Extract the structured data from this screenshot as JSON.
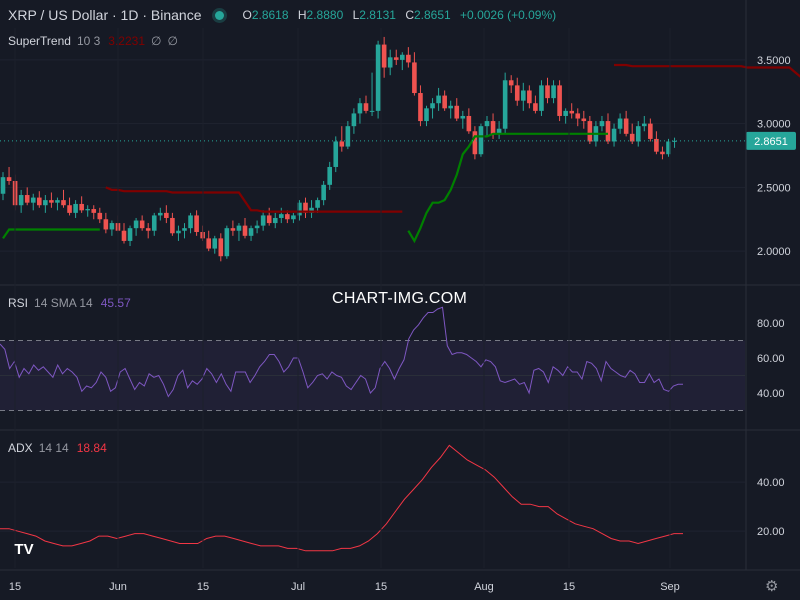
{
  "header": {
    "symbol": "XRP / US Dollar · 1D · Binance",
    "o_label": "O",
    "o": "2.8618",
    "h_label": "H",
    "h": "2.8880",
    "l_label": "L",
    "l": "2.8131",
    "c_label": "C",
    "c": "2.8651",
    "change": "+0.0026 (+0.09%)"
  },
  "supertrend": {
    "name": "SuperTrend",
    "params": "10 3",
    "value": "3.2231",
    "icons": [
      "empty-set-icon",
      "empty-set-icon"
    ]
  },
  "rsi": {
    "name": "RSI",
    "params": "14 SMA 14",
    "value": "45.57"
  },
  "adx": {
    "name": "ADX",
    "params": "14 14",
    "value": "18.84"
  },
  "watermark": "CHART-IMG.COM",
  "logo": "TV",
  "colors": {
    "bg": "#161a25",
    "up": "#26a69a",
    "down": "#ef5350",
    "st_up": "#008000",
    "st_down": "#800000",
    "rsi": "#7e57c2",
    "adx": "#f23645",
    "text": "#d1d4dc"
  },
  "chart_data": [
    {
      "type": "candlestick",
      "title": "XRP / US Dollar · 1D · Binance",
      "ylim": [
        1.75,
        3.75
      ],
      "yticks": [
        "3.5000",
        "3.0000",
        "2.5000",
        "2.0000"
      ],
      "last_price_label": "2.8651",
      "xticks": [
        "15",
        "Jun",
        "15",
        "Jul",
        "15",
        "Aug",
        "15",
        "Sep"
      ],
      "ohlc": [
        [
          2.45,
          2.62,
          2.4,
          2.58
        ],
        [
          2.58,
          2.66,
          2.52,
          2.55
        ],
        [
          2.55,
          2.6,
          2.32,
          2.36
        ],
        [
          2.36,
          2.48,
          2.3,
          2.44
        ],
        [
          2.44,
          2.5,
          2.36,
          2.38
        ],
        [
          2.38,
          2.45,
          2.32,
          2.42
        ],
        [
          2.42,
          2.47,
          2.34,
          2.36
        ],
        [
          2.36,
          2.44,
          2.3,
          2.4
        ],
        [
          2.4,
          2.46,
          2.34,
          2.38
        ],
        [
          2.38,
          2.42,
          2.32,
          2.4
        ],
        [
          2.4,
          2.48,
          2.34,
          2.36
        ],
        [
          2.36,
          2.42,
          2.28,
          2.3
        ],
        [
          2.3,
          2.4,
          2.26,
          2.37
        ],
        [
          2.37,
          2.43,
          2.3,
          2.32
        ],
        [
          2.32,
          2.36,
          2.27,
          2.33
        ],
        [
          2.33,
          2.36,
          2.25,
          2.3
        ],
        [
          2.3,
          2.34,
          2.22,
          2.25
        ],
        [
          2.25,
          2.3,
          2.14,
          2.17
        ],
        [
          2.17,
          2.24,
          2.12,
          2.22
        ],
        [
          2.22,
          2.28,
          2.14,
          2.16
        ],
        [
          2.16,
          2.22,
          2.06,
          2.08
        ],
        [
          2.08,
          2.2,
          2.04,
          2.18
        ],
        [
          2.18,
          2.26,
          2.12,
          2.24
        ],
        [
          2.24,
          2.28,
          2.16,
          2.18
        ],
        [
          2.18,
          2.22,
          2.1,
          2.16
        ],
        [
          2.16,
          2.3,
          2.12,
          2.28
        ],
        [
          2.28,
          2.34,
          2.24,
          2.3
        ],
        [
          2.3,
          2.36,
          2.22,
          2.26
        ],
        [
          2.26,
          2.3,
          2.12,
          2.14
        ],
        [
          2.14,
          2.2,
          2.08,
          2.16
        ],
        [
          2.16,
          2.22,
          2.1,
          2.18
        ],
        [
          2.18,
          2.3,
          2.14,
          2.28
        ],
        [
          2.28,
          2.32,
          2.12,
          2.15
        ],
        [
          2.15,
          2.2,
          2.08,
          2.1
        ],
        [
          2.1,
          2.16,
          2.0,
          2.02
        ],
        [
          2.02,
          2.12,
          1.98,
          2.1
        ],
        [
          2.1,
          2.14,
          1.92,
          1.96
        ],
        [
          1.96,
          2.2,
          1.94,
          2.18
        ],
        [
          2.18,
          2.24,
          2.12,
          2.16
        ],
        [
          2.16,
          2.22,
          2.08,
          2.2
        ],
        [
          2.2,
          2.26,
          2.1,
          2.12
        ],
        [
          2.12,
          2.2,
          2.08,
          2.18
        ],
        [
          2.18,
          2.24,
          2.14,
          2.2
        ],
        [
          2.2,
          2.32,
          2.16,
          2.28
        ],
        [
          2.28,
          2.34,
          2.2,
          2.22
        ],
        [
          2.22,
          2.3,
          2.18,
          2.26
        ],
        [
          2.26,
          2.34,
          2.22,
          2.29
        ],
        [
          2.29,
          2.32,
          2.22,
          2.25
        ],
        [
          2.25,
          2.3,
          2.22,
          2.28
        ],
        [
          2.28,
          2.4,
          2.24,
          2.38
        ],
        [
          2.38,
          2.42,
          2.26,
          2.3
        ],
        [
          2.3,
          2.4,
          2.26,
          2.34
        ],
        [
          2.34,
          2.42,
          2.3,
          2.4
        ],
        [
          2.4,
          2.55,
          2.36,
          2.52
        ],
        [
          2.52,
          2.7,
          2.48,
          2.66
        ],
        [
          2.66,
          2.9,
          2.62,
          2.86
        ],
        [
          2.86,
          2.98,
          2.78,
          2.82
        ],
        [
          2.82,
          3.02,
          2.8,
          2.98
        ],
        [
          2.98,
          3.12,
          2.92,
          3.08
        ],
        [
          3.08,
          3.2,
          3.0,
          3.16
        ],
        [
          3.16,
          3.22,
          3.08,
          3.1
        ],
        [
          3.1,
          3.4,
          3.06,
          3.1
        ],
        [
          3.1,
          3.65,
          3.04,
          3.62
        ],
        [
          3.62,
          3.68,
          3.36,
          3.44
        ],
        [
          3.44,
          3.58,
          3.38,
          3.52
        ],
        [
          3.52,
          3.58,
          3.46,
          3.5
        ],
        [
          3.5,
          3.56,
          3.42,
          3.54
        ],
        [
          3.54,
          3.6,
          3.44,
          3.48
        ],
        [
          3.48,
          3.56,
          3.22,
          3.24
        ],
        [
          3.24,
          3.3,
          2.98,
          3.02
        ],
        [
          3.02,
          3.14,
          2.98,
          3.12
        ],
        [
          3.12,
          3.2,
          3.04,
          3.16
        ],
        [
          3.16,
          3.28,
          3.1,
          3.22
        ],
        [
          3.22,
          3.26,
          3.1,
          3.12
        ],
        [
          3.12,
          3.18,
          3.04,
          3.14
        ],
        [
          3.14,
          3.2,
          3.02,
          3.04
        ],
        [
          3.04,
          3.1,
          2.96,
          3.06
        ],
        [
          3.06,
          3.12,
          2.92,
          2.94
        ],
        [
          2.94,
          2.98,
          2.72,
          2.76
        ],
        [
          2.76,
          3.0,
          2.74,
          2.98
        ],
        [
          2.98,
          3.06,
          2.9,
          3.02
        ],
        [
          3.02,
          3.08,
          2.88,
          2.92
        ],
        [
          2.92,
          3.02,
          2.88,
          2.96
        ],
        [
          2.96,
          3.4,
          2.92,
          3.34
        ],
        [
          3.34,
          3.38,
          3.24,
          3.3
        ],
        [
          3.3,
          3.36,
          3.14,
          3.18
        ],
        [
          3.18,
          3.32,
          3.1,
          3.26
        ],
        [
          3.26,
          3.3,
          3.12,
          3.16
        ],
        [
          3.16,
          3.22,
          3.08,
          3.1
        ],
        [
          3.1,
          3.34,
          3.06,
          3.3
        ],
        [
          3.3,
          3.36,
          3.16,
          3.2
        ],
        [
          3.2,
          3.34,
          3.16,
          3.3
        ],
        [
          3.3,
          3.34,
          3.02,
          3.06
        ],
        [
          3.06,
          3.12,
          3.0,
          3.1
        ],
        [
          3.1,
          3.16,
          3.04,
          3.08
        ],
        [
          3.08,
          3.12,
          2.98,
          3.04
        ],
        [
          3.04,
          3.1,
          2.96,
          3.02
        ],
        [
          3.02,
          3.06,
          2.84,
          2.86
        ],
        [
          2.86,
          3.02,
          2.82,
          2.98
        ],
        [
          2.98,
          3.06,
          2.94,
          3.02
        ],
        [
          3.02,
          3.08,
          2.84,
          2.86
        ],
        [
          2.86,
          3.0,
          2.82,
          2.96
        ],
        [
          2.96,
          3.08,
          2.92,
          3.04
        ],
        [
          3.04,
          3.1,
          2.9,
          2.92
        ],
        [
          2.92,
          3.0,
          2.84,
          2.86
        ],
        [
          2.86,
          3.02,
          2.82,
          2.98
        ],
        [
          2.98,
          3.06,
          2.94,
          3.0
        ],
        [
          3.0,
          3.04,
          2.86,
          2.88
        ],
        [
          2.88,
          2.94,
          2.76,
          2.78
        ],
        [
          2.78,
          2.82,
          2.72,
          2.76
        ],
        [
          2.76,
          2.88,
          2.74,
          2.86
        ],
        [
          2.86,
          2.89,
          2.81,
          2.8651
        ]
      ],
      "supertrend": {
        "params": "10 3",
        "value": "3.2231",
        "segments": [
          {
            "trend": "up",
            "values": [
              2.1,
              2.17,
              2.17,
              2.17,
              2.17,
              2.17,
              2.17,
              2.17,
              2.17,
              2.17,
              2.17,
              2.17,
              2.17,
              2.17,
              2.17,
              2.17,
              2.17
            ]
          },
          {
            "trend": "down",
            "values": [
              2.5,
              2.48,
              2.48,
              2.47,
              2.47,
              2.47,
              2.47,
              2.47,
              2.47,
              2.47,
              2.47,
              2.46,
              2.46,
              2.46,
              2.46,
              2.46,
              2.46,
              2.46,
              2.46,
              2.46,
              2.46,
              2.46,
              2.46,
              2.39,
              2.32,
              2.32,
              2.31,
              2.31,
              2.31,
              2.31,
              2.31,
              2.31,
              2.31,
              2.31,
              2.31,
              2.31,
              2.31,
              2.31,
              2.31,
              2.31,
              2.31,
              2.31,
              2.31,
              2.31,
              2.31,
              2.31,
              2.31,
              2.31,
              2.31,
              2.31
            ]
          },
          {
            "trend": "up",
            "values": [
              2.16,
              2.08,
              2.18,
              2.3,
              2.38,
              2.38,
              2.4,
              2.48,
              2.6,
              2.76,
              2.82,
              2.9,
              2.9,
              2.9,
              2.92,
              2.92,
              2.92,
              2.92,
              2.92,
              2.92,
              2.92,
              2.92,
              2.92,
              2.92,
              2.92,
              2.92,
              2.92,
              2.92,
              2.92,
              2.92,
              2.92,
              2.92,
              2.92,
              2.92
            ]
          },
          {
            "trend": "down",
            "values": [
              3.46,
              3.46,
              3.46,
              3.45,
              3.45,
              3.45,
              3.45,
              3.45,
              3.45,
              3.45,
              3.45,
              3.45,
              3.45,
              3.45,
              3.45,
              3.45,
              3.45,
              3.45,
              3.45,
              3.45,
              3.45,
              3.45,
              3.44,
              3.44,
              3.44,
              3.44,
              3.44,
              3.44,
              3.44,
              3.44,
              3.4,
              3.36,
              3.32,
              3.28,
              3.24,
              3.2231
            ]
          }
        ]
      }
    },
    {
      "type": "line",
      "name": "RSI 14 SMA 14",
      "ylim": [
        20,
        100
      ],
      "yticks": [
        "80.00",
        "60.00",
        "40.00"
      ],
      "bands": [
        30,
        70
      ],
      "values": [
        68,
        65,
        54,
        58,
        49,
        54,
        51,
        56,
        53,
        55,
        52,
        49,
        56,
        51,
        54,
        52,
        49,
        41,
        44,
        43,
        46,
        52,
        49,
        41,
        43,
        52,
        54,
        48,
        42,
        46,
        44,
        51,
        49,
        50,
        45,
        38,
        42,
        50,
        53,
        43,
        47,
        45,
        48,
        54,
        51,
        46,
        51,
        45,
        41,
        52,
        52,
        52,
        46,
        50,
        55,
        58,
        62,
        62,
        58,
        52,
        55,
        60,
        60,
        52,
        43,
        46,
        50,
        51,
        48,
        52,
        50,
        49,
        44,
        42,
        46,
        50,
        48,
        40,
        43,
        54,
        58,
        54,
        48,
        54,
        59,
        71,
        76,
        79,
        83,
        86,
        86,
        88,
        89,
        67,
        62,
        63,
        63,
        62,
        60,
        58,
        55,
        59,
        58,
        55,
        47,
        46,
        47,
        48,
        45,
        46,
        40,
        53,
        54,
        52,
        46,
        55,
        53,
        50,
        55,
        52,
        52,
        48,
        58,
        57,
        54,
        47,
        58,
        54,
        52,
        50,
        49,
        53,
        51,
        46,
        46,
        51,
        46,
        48,
        42,
        41,
        44,
        45,
        45
      ]
    },
    {
      "type": "line",
      "name": "ADX 14 14",
      "ylim": [
        5,
        60
      ],
      "yticks": [
        "40.00",
        "20.00"
      ],
      "values": [
        21,
        21,
        20,
        19,
        18,
        16,
        15,
        14,
        14,
        15,
        16,
        18,
        18,
        17,
        18,
        19,
        19,
        18,
        17,
        16,
        15,
        15,
        15,
        17,
        18,
        18,
        17,
        16,
        15,
        14,
        14,
        14,
        13,
        13,
        12,
        12,
        12,
        12,
        13,
        13,
        14,
        16,
        19,
        23,
        28,
        33,
        37,
        41,
        46,
        50,
        55,
        52,
        49,
        47,
        45,
        42,
        38,
        34,
        31,
        31,
        30,
        30,
        27,
        25,
        23,
        22,
        21,
        19,
        17,
        16,
        16,
        15,
        16,
        17,
        18,
        19,
        19
      ]
    }
  ]
}
